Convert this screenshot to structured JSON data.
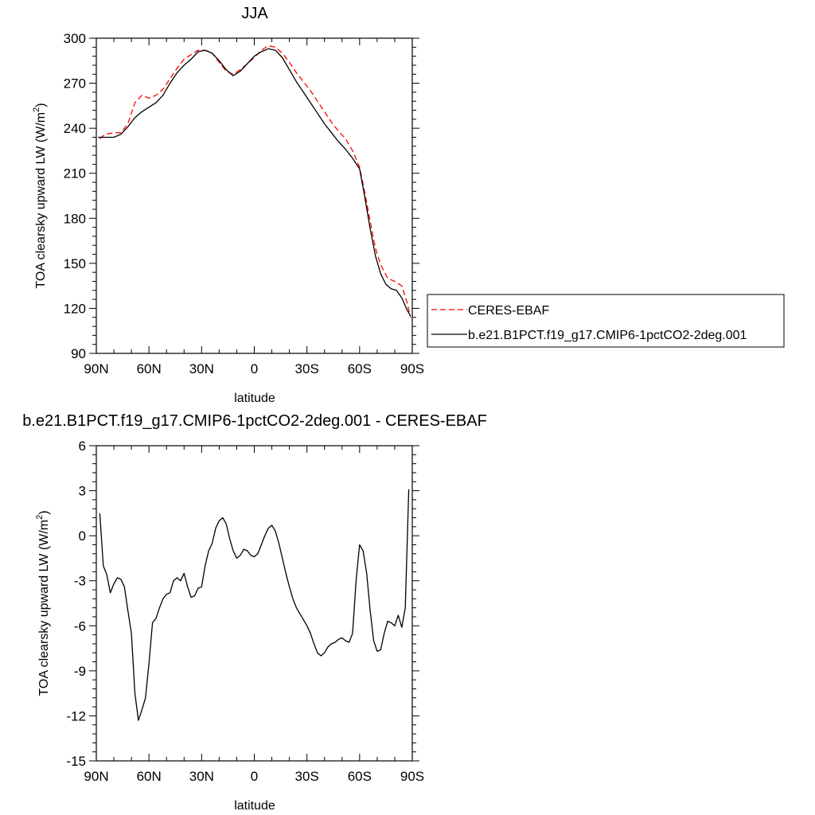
{
  "chart_data": [
    {
      "type": "line",
      "title": "JJA",
      "xlabel": "latitude",
      "ylabel": "TOA clearsky upward LW (W/m²)",
      "ylabel_main": "TOA clearsky upward LW (W/m",
      "ylabel_sup": "2",
      "ylabel_end": ")",
      "xlim": [
        90,
        -90
      ],
      "ylim": [
        90,
        300
      ],
      "xticks": [
        90,
        60,
        30,
        0,
        -30,
        -60,
        -90
      ],
      "xticklabels": [
        "90N",
        "60N",
        "30N",
        "0",
        "30S",
        "60S",
        "90S"
      ],
      "yticks": [
        90,
        120,
        150,
        180,
        210,
        240,
        270,
        300
      ],
      "yticklabels": [
        "90",
        "120",
        "150",
        "180",
        "210",
        "240",
        "270",
        "300"
      ],
      "legend_position": "right",
      "series": [
        {
          "name": "CERES-EBAF",
          "color": "#ff0000",
          "dash": "dashed",
          "x": [
            88,
            85,
            80,
            76,
            72,
            68,
            64,
            60,
            56,
            52,
            48,
            44,
            40,
            36,
            32,
            28,
            24,
            20,
            16,
            12,
            8,
            4,
            0,
            -4,
            -8,
            -12,
            -16,
            -20,
            -24,
            -28,
            -32,
            -36,
            -40,
            -44,
            -48,
            -52,
            -56,
            -60,
            -63,
            -66,
            -69,
            -72,
            -76,
            -80,
            -84,
            -87,
            -89
          ],
          "y": [
            233,
            236,
            237,
            237,
            243,
            257,
            262,
            260,
            262,
            266,
            273,
            280,
            286,
            289,
            292,
            292,
            290,
            284,
            278,
            276,
            279,
            283,
            287,
            292,
            295,
            294,
            290,
            284,
            277,
            271,
            265,
            258,
            251,
            244,
            238,
            233,
            225,
            214,
            197,
            178,
            160,
            149,
            140,
            138,
            135,
            124,
            114
          ]
        },
        {
          "name": "b.e21.B1PCT.f19_g17.CMIP6-1pctCO2-2deg.001",
          "color": "#000000",
          "dash": "solid",
          "x": [
            89,
            85,
            80,
            76,
            72,
            68,
            64,
            60,
            56,
            52,
            48,
            44,
            40,
            36,
            32,
            28,
            24,
            20,
            16,
            12,
            8,
            4,
            0,
            -4,
            -8,
            -12,
            -16,
            -20,
            -24,
            -28,
            -32,
            -36,
            -40,
            -44,
            -48,
            -52,
            -56,
            -60,
            -63,
            -66,
            -69,
            -72,
            -75,
            -78,
            -81,
            -84,
            -87,
            -89
          ],
          "y": [
            234,
            234,
            234,
            236,
            241,
            247,
            251,
            254,
            257,
            262,
            270,
            277,
            282,
            286,
            291,
            292,
            290,
            285,
            279,
            275,
            278,
            283,
            288,
            291,
            293,
            292,
            287,
            279,
            271,
            264,
            257,
            250,
            243,
            237,
            231,
            226,
            220,
            213,
            194,
            173,
            155,
            143,
            136,
            133,
            132,
            127,
            119,
            115
          ]
        }
      ]
    },
    {
      "type": "line",
      "title": "b.e21.B1PCT.f19_g17.CMIP6-1pctCO2-2deg.001 - CERES-EBAF",
      "xlabel": "latitude",
      "ylabel": "TOA clearsky upward LW (W/m²)",
      "ylabel_main": "TOA clearsky upward LW (W/m",
      "ylabel_sup": "2",
      "ylabel_end": ")",
      "xlim": [
        90,
        -90
      ],
      "ylim": [
        -15,
        6
      ],
      "xticks": [
        90,
        60,
        30,
        0,
        -30,
        -60,
        -90
      ],
      "xticklabels": [
        "90N",
        "60N",
        "30N",
        "0",
        "30S",
        "60S",
        "90S"
      ],
      "yticks": [
        -15,
        -12,
        -9,
        -6,
        -3,
        0,
        3,
        6
      ],
      "yticklabels": [
        "-15",
        "-12",
        "-9",
        "-6",
        "-3",
        "0",
        "3",
        "6"
      ],
      "series": [
        {
          "color": "#000000",
          "x": [
            88,
            86,
            84,
            82,
            80,
            78,
            76,
            74,
            72,
            70,
            68,
            66,
            64,
            62,
            60,
            58,
            56,
            54,
            52,
            50,
            48,
            46,
            44,
            42,
            40,
            38,
            36,
            34,
            32,
            30,
            28,
            26,
            24,
            22,
            20,
            18,
            16,
            14,
            12,
            10,
            8,
            6,
            4,
            2,
            0,
            -2,
            -4,
            -6,
            -8,
            -10,
            -12,
            -14,
            -16,
            -18,
            -20,
            -22,
            -24,
            -26,
            -28,
            -30,
            -32,
            -34,
            -36,
            -38,
            -40,
            -42,
            -44,
            -46,
            -48,
            -50,
            -52,
            -54,
            -56,
            -58,
            -60,
            -62,
            -64,
            -66,
            -68,
            -70,
            -72,
            -74,
            -76,
            -78,
            -80,
            -82,
            -84,
            -86,
            -88
          ],
          "y": [
            1.5,
            -2.0,
            -2.6,
            -3.8,
            -3.2,
            -2.8,
            -2.9,
            -3.4,
            -5.0,
            -6.5,
            -10.5,
            -12.3,
            -11.6,
            -10.8,
            -8.5,
            -5.8,
            -5.5,
            -4.8,
            -4.2,
            -3.9,
            -3.8,
            -3.0,
            -2.8,
            -3.0,
            -2.5,
            -3.4,
            -4.1,
            -4.0,
            -3.5,
            -3.4,
            -2.0,
            -1.0,
            -0.5,
            0.5,
            1.0,
            1.2,
            0.8,
            -0.2,
            -1.0,
            -1.5,
            -1.3,
            -0.9,
            -1.0,
            -1.3,
            -1.4,
            -1.2,
            -0.6,
            0.0,
            0.5,
            0.7,
            0.3,
            -0.5,
            -1.5,
            -2.5,
            -3.4,
            -4.2,
            -4.8,
            -5.2,
            -5.6,
            -6.0,
            -6.5,
            -7.2,
            -7.8,
            -8.0,
            -7.8,
            -7.4,
            -7.2,
            -7.1,
            -6.9,
            -6.8,
            -7.0,
            -7.1,
            -6.5,
            -3.0,
            -0.6,
            -1.0,
            -2.5,
            -5.0,
            -7.0,
            -7.7,
            -7.6,
            -6.5,
            -5.7,
            -5.8,
            -6.0,
            -5.3,
            -6.1,
            -4.8,
            3.1
          ]
        }
      ]
    }
  ]
}
